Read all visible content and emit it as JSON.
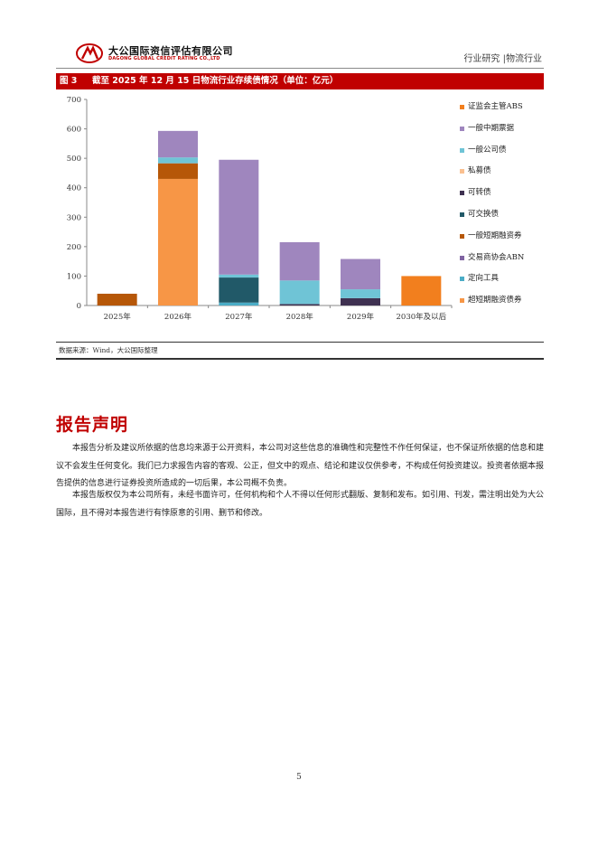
{
  "header": {
    "logo_cn": "大公国际资信评估有限公司",
    "logo_en": "DAGONG GLOBAL CREDIT RATING CO.,LTD",
    "right_text": "行业研究 |物流行业"
  },
  "figure": {
    "number": "图 3",
    "title": "截至 2025 年 12 月 15 日物流行业存续债情况（单位：亿元）",
    "source": "数据来源：Wind，大公国际整理"
  },
  "chart_data": {
    "type": "bar",
    "stacked": true,
    "categories": [
      "2025年",
      "2026年",
      "2027年",
      "2028年",
      "2029年",
      "2030年及以后"
    ],
    "ylim": [
      0,
      700
    ],
    "yticks": [
      "0",
      "100",
      "200",
      "300",
      "400",
      "500",
      "600",
      "700"
    ],
    "grid": false,
    "legend_position": "right",
    "series": [
      {
        "name": "超短期融资债券",
        "color": "#F79646",
        "values": [
          0,
          430,
          0,
          0,
          0,
          0
        ]
      },
      {
        "name": "定向工具",
        "color": "#4BACC6",
        "values": [
          0,
          0,
          10,
          0,
          0,
          0
        ]
      },
      {
        "name": "交易商协会ABN",
        "color": "#8064A2",
        "values": [
          0,
          0,
          0,
          0,
          0,
          0
        ]
      },
      {
        "name": "一般短期融资券",
        "color": "#B65708",
        "values": [
          40,
          53,
          0,
          0,
          0,
          0
        ]
      },
      {
        "name": "可交换债",
        "color": "#215968",
        "values": [
          0,
          0,
          85,
          0,
          0,
          0
        ]
      },
      {
        "name": "可转债",
        "color": "#3F3151",
        "values": [
          0,
          0,
          0,
          5,
          25,
          0
        ]
      },
      {
        "name": "私募债",
        "color": "#FAC090",
        "values": [
          0,
          0,
          0,
          0,
          0,
          0
        ]
      },
      {
        "name": "一般公司债",
        "color": "#6FC4D6",
        "values": [
          0,
          20,
          10,
          80,
          30,
          0
        ]
      },
      {
        "name": "一般中期票据",
        "color": "#9F86BE",
        "values": [
          0,
          90,
          390,
          130,
          103,
          0
        ]
      },
      {
        "name": "证监会主管ABS",
        "color": "#F27F1E",
        "values": [
          0,
          0,
          0,
          0,
          0,
          100
        ]
      }
    ]
  },
  "section": {
    "title": "报告声明",
    "paragraphs": [
      "本报告分析及建议所依据的信息均来源于公开资料，本公司对这些信息的准确性和完整性不作任何保证，也不保证所依据的信息和建议不会发生任何变化。我们已力求报告内容的客观、公正，但文中的观点、结论和建议仅供参考，不构成任何投资建议。投资者依据本报告提供的信息进行证券投资所造成的一切后果，本公司概不负责。",
      "本报告版权仅为本公司所有，未经书面许可，任何机构和个人不得以任何形式翻版、复制和发布。如引用、刊发，需注明出处为大公国际，且不得对本报告进行有悖原意的引用、删节和修改。"
    ]
  },
  "page_number": "5"
}
